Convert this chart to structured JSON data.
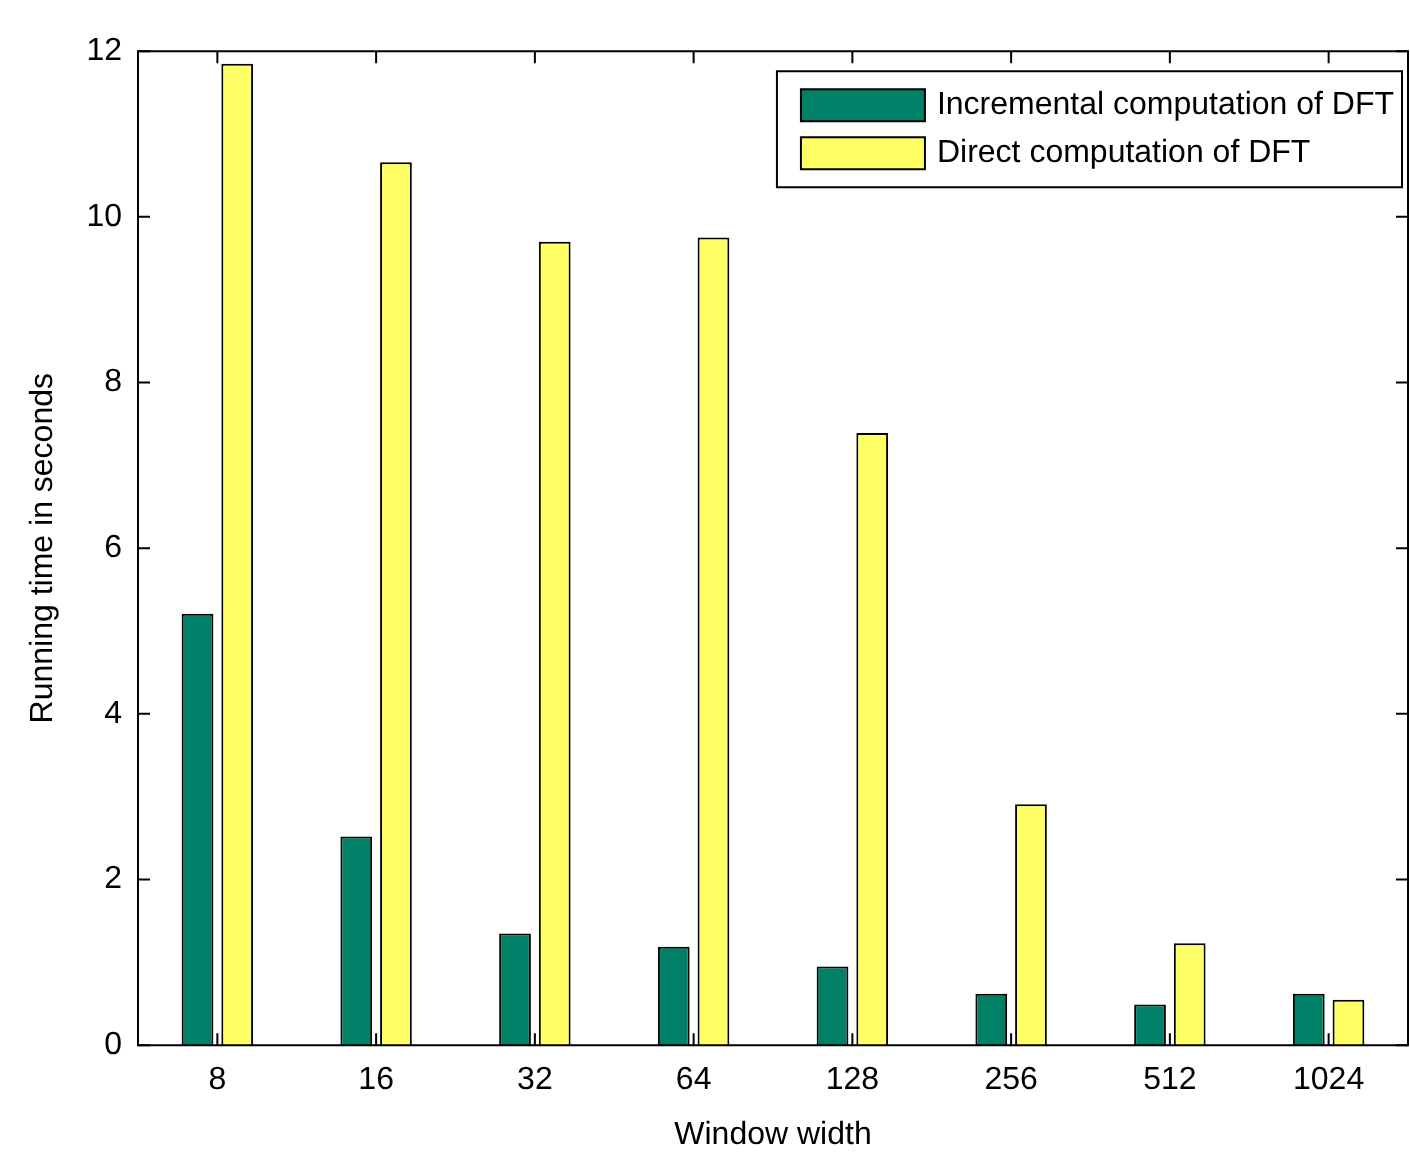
{
  "chart_data": {
    "type": "bar",
    "xlabel": "Window width",
    "ylabel": "Running time in seconds",
    "categories": [
      "8",
      "16",
      "32",
      "64",
      "128",
      "256",
      "512",
      "1024"
    ],
    "series": [
      {
        "name": "Incremental computation of DFT",
        "color": "#008066",
        "values": [
          5.21,
          2.52,
          1.35,
          1.19,
          0.95,
          0.62,
          0.49,
          0.62
        ]
      },
      {
        "name": "Direct computation of DFT",
        "color": "#ffff66",
        "values": [
          11.85,
          10.66,
          9.7,
          9.75,
          7.39,
          2.91,
          1.23,
          0.55
        ]
      }
    ],
    "ylim": [
      0,
      12
    ],
    "yticks": [
      0,
      2,
      4,
      6,
      8,
      10,
      12
    ],
    "grid": false,
    "legend": "top right"
  }
}
